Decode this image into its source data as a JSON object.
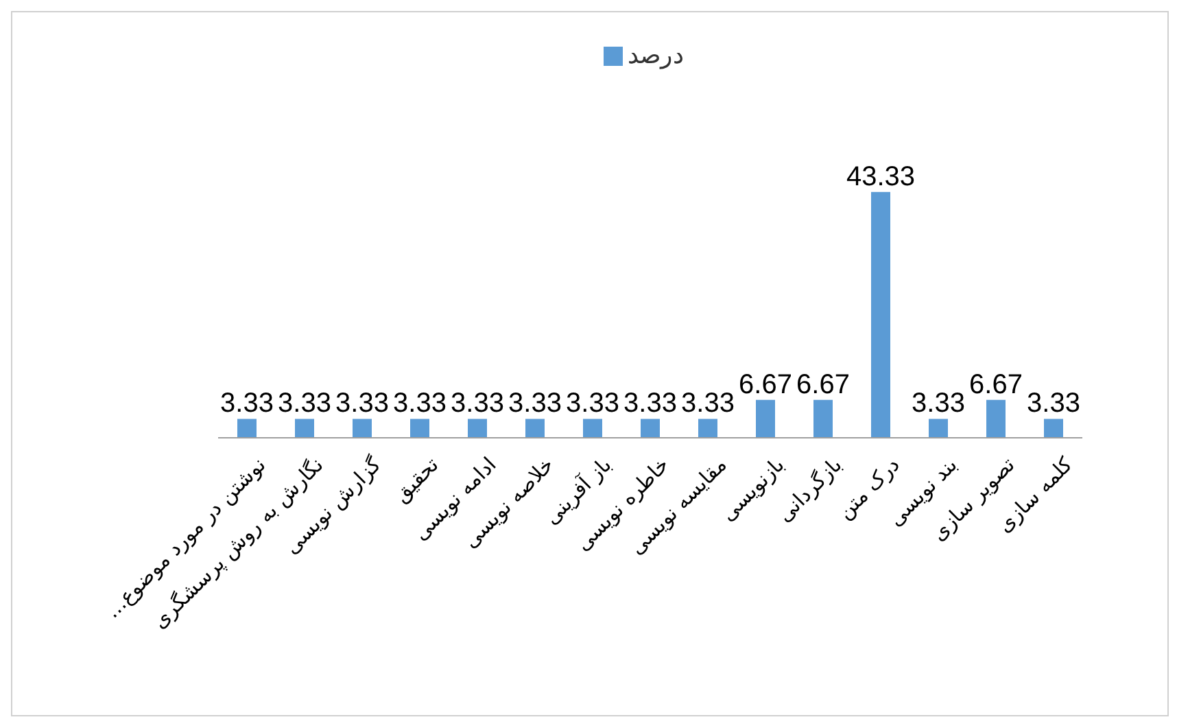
{
  "chart_data": {
    "type": "bar",
    "categories": [
      "نوشتن در مورد موضوع...",
      "نگارش به روش پرسشگری",
      "گزارش نویسی",
      "تحقیق",
      "ادامه نویسی",
      "خلاصه نویسی",
      "باز آفرینی",
      "خاطره نویسی",
      "مقایسه نویسی",
      "بازنویسی",
      "بازگردانی",
      "درک متن",
      "بند نویسی",
      "تصویر سازی",
      "کلمه سازی"
    ],
    "series": [
      {
        "name": "درصد",
        "color": "#5b9bd5",
        "values": [
          3.33,
          3.33,
          3.33,
          3.33,
          3.33,
          3.33,
          3.33,
          3.33,
          3.33,
          6.67,
          6.67,
          43.33,
          3.33,
          6.67,
          3.33
        ]
      }
    ],
    "data_labels": true,
    "legend": "top",
    "grid": false
  }
}
